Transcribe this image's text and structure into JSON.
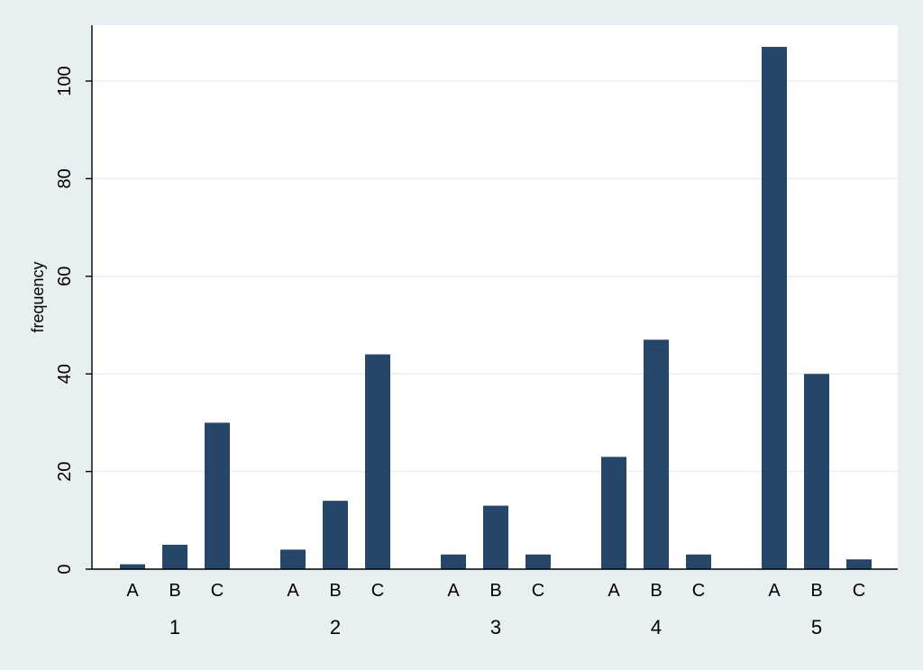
{
  "chart_data": {
    "type": "bar",
    "ylabel": "frequency",
    "ylim": [
      0,
      112
    ],
    "yticks": [
      0,
      20,
      40,
      60,
      80,
      100
    ],
    "grid": true,
    "legend": "none",
    "groups": [
      {
        "label": "1",
        "bars": [
          {
            "label": "A",
            "value": 1
          },
          {
            "label": "B",
            "value": 5
          },
          {
            "label": "C",
            "value": 30
          }
        ]
      },
      {
        "label": "2",
        "bars": [
          {
            "label": "A",
            "value": 4
          },
          {
            "label": "B",
            "value": 14
          },
          {
            "label": "C",
            "value": 44
          }
        ]
      },
      {
        "label": "3",
        "bars": [
          {
            "label": "A",
            "value": 3
          },
          {
            "label": "B",
            "value": 13
          },
          {
            "label": "C",
            "value": 3
          }
        ]
      },
      {
        "label": "4",
        "bars": [
          {
            "label": "A",
            "value": 23
          },
          {
            "label": "B",
            "value": 47
          },
          {
            "label": "C",
            "value": 3
          }
        ]
      },
      {
        "label": "5",
        "bars": [
          {
            "label": "A",
            "value": 107
          },
          {
            "label": "B",
            "value": 40
          },
          {
            "label": "C",
            "value": 2
          }
        ]
      }
    ],
    "colors": {
      "background": "#e8eff2",
      "plot_background": "#ffffff",
      "bar": "#26476a",
      "grid": "#e8eff2",
      "axis": "#000000"
    }
  }
}
